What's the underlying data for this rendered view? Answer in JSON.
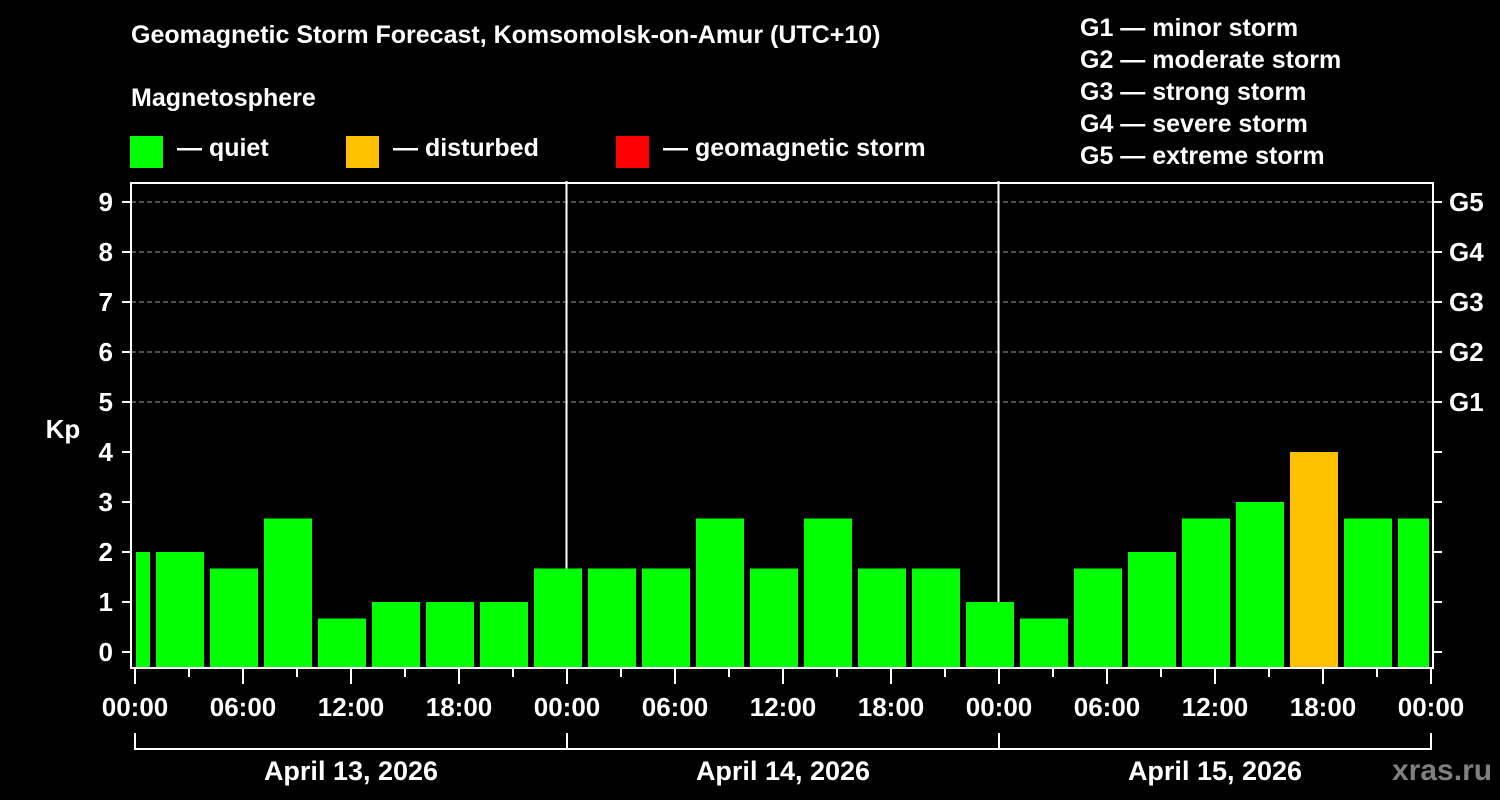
{
  "title": "Geomagnetic Storm Forecast, Komsomolsk-on-Amur (UTC+10)",
  "legend": {
    "heading": "Magnetosphere",
    "items": [
      {
        "label": "— quiet",
        "color": "#00ff00",
        "x": 130
      },
      {
        "label": "— disturbed",
        "color": "#ffc000",
        "x": 346
      },
      {
        "label": "— geomagnetic storm",
        "color": "#ff0000",
        "x": 616
      }
    ]
  },
  "g_scale": [
    "G1 — minor storm",
    "G2 — moderate storm",
    "G3 — strong storm",
    "G4 — severe storm",
    "G5 — extreme storm"
  ],
  "watermark": "xras.ru",
  "chart_data": {
    "type": "bar",
    "title": "Geomagnetic Storm Forecast, Komsomolsk-on-Amur (UTC+10)",
    "xlabel": "",
    "ylabel": "Kp",
    "ylim": [
      0,
      9
    ],
    "y_ticks": [
      0,
      1,
      2,
      3,
      4,
      5,
      6,
      7,
      8,
      9
    ],
    "right_axis_ticks": [
      {
        "kp": 5,
        "label": "G1"
      },
      {
        "kp": 6,
        "label": "G2"
      },
      {
        "kp": 7,
        "label": "G3"
      },
      {
        "kp": 8,
        "label": "G4"
      },
      {
        "kp": 9,
        "label": "G5"
      }
    ],
    "grid": "dashed horizontal lines at Kp 5-9",
    "x_tick_labels": [
      "00:00",
      "06:00",
      "12:00",
      "18:00",
      "00:00",
      "06:00",
      "12:00",
      "18:00",
      "00:00",
      "06:00",
      "12:00",
      "18:00",
      "00:00"
    ],
    "days": [
      "April 13, 2026",
      "April 14, 2026",
      "April 15, 2026"
    ],
    "colors": {
      "quiet": "#00ff00",
      "disturbed": "#ffc000",
      "storm": "#ff0000"
    },
    "bars": [
      {
        "time": "Apr 13 00:00",
        "kp": 2.0,
        "level": "quiet"
      },
      {
        "time": "Apr 13 03:00",
        "kp": 2.0,
        "level": "quiet"
      },
      {
        "time": "Apr 13 06:00",
        "kp": 1.67,
        "level": "quiet"
      },
      {
        "time": "Apr 13 09:00",
        "kp": 2.67,
        "level": "quiet"
      },
      {
        "time": "Apr 13 12:00",
        "kp": 0.67,
        "level": "quiet"
      },
      {
        "time": "Apr 13 15:00",
        "kp": 1.0,
        "level": "quiet"
      },
      {
        "time": "Apr 13 18:00",
        "kp": 1.0,
        "level": "quiet"
      },
      {
        "time": "Apr 13 21:00",
        "kp": 1.0,
        "level": "quiet"
      },
      {
        "time": "Apr 14 00:00",
        "kp": 1.67,
        "level": "quiet"
      },
      {
        "time": "Apr 14 03:00",
        "kp": 1.67,
        "level": "quiet"
      },
      {
        "time": "Apr 14 06:00",
        "kp": 1.67,
        "level": "quiet"
      },
      {
        "time": "Apr 14 09:00",
        "kp": 2.67,
        "level": "quiet"
      },
      {
        "time": "Apr 14 12:00",
        "kp": 1.67,
        "level": "quiet"
      },
      {
        "time": "Apr 14 15:00",
        "kp": 2.67,
        "level": "quiet"
      },
      {
        "time": "Apr 14 18:00",
        "kp": 1.67,
        "level": "quiet"
      },
      {
        "time": "Apr 14 21:00",
        "kp": 1.67,
        "level": "quiet"
      },
      {
        "time": "Apr 15 00:00",
        "kp": 1.0,
        "level": "quiet"
      },
      {
        "time": "Apr 15 03:00",
        "kp": 0.67,
        "level": "quiet"
      },
      {
        "time": "Apr 15 06:00",
        "kp": 1.67,
        "level": "quiet"
      },
      {
        "time": "Apr 15 09:00",
        "kp": 2.0,
        "level": "quiet"
      },
      {
        "time": "Apr 15 12:00",
        "kp": 2.67,
        "level": "quiet"
      },
      {
        "time": "Apr 15 15:00",
        "kp": 3.0,
        "level": "quiet"
      },
      {
        "time": "Apr 15 18:00",
        "kp": 4.0,
        "level": "disturbed"
      },
      {
        "time": "Apr 15 21:00",
        "kp": 2.67,
        "level": "quiet"
      },
      {
        "time": "Apr 16 00:00",
        "kp": 2.67,
        "level": "quiet"
      }
    ]
  }
}
